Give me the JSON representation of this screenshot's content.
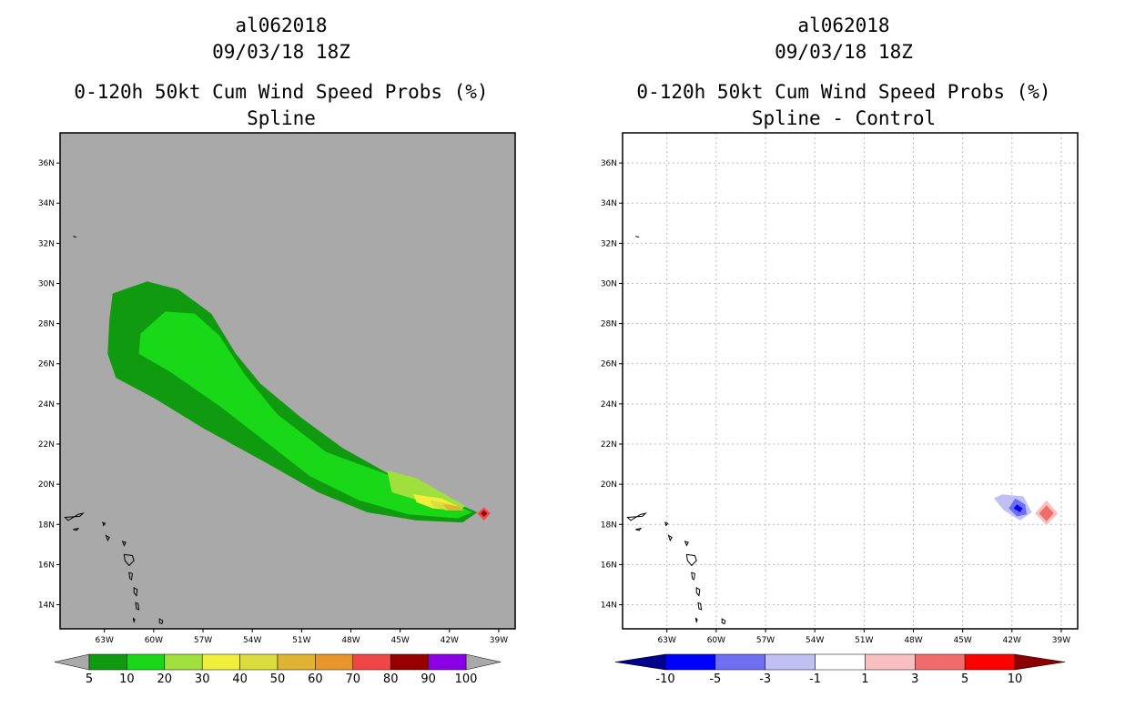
{
  "chart_data": [
    {
      "type": "heatmap",
      "storm_id": "al062018",
      "datetime": "09/03/18 18Z",
      "title": "0-120h 50kt Cum Wind Speed Probs (%)",
      "subtitle": "Spline",
      "x_ticks": [
        "63W",
        "60W",
        "57W",
        "54W",
        "51W",
        "48W",
        "45W",
        "42W",
        "39W"
      ],
      "y_ticks": [
        "14N",
        "16N",
        "18N",
        "20N",
        "22N",
        "24N",
        "26N",
        "28N",
        "30N",
        "32N",
        "34N",
        "36N"
      ],
      "xlim": [
        -65.7,
        -38.0
      ],
      "ylim": [
        12.8,
        37.5
      ],
      "grid": false,
      "background_color": "#a9a9a9",
      "colorbar": {
        "labels": [
          "5",
          "10",
          "20",
          "30",
          "40",
          "50",
          "60",
          "70",
          "80",
          "90",
          "100"
        ],
        "colors": [
          "#0f9a0f",
          "#18d818",
          "#a0e03c",
          "#f0f03c",
          "#dcdc3c",
          "#e0b432",
          "#e8962c",
          "#f04646",
          "#960000",
          "#8c00e6"
        ],
        "low_color": "#a9a9a9",
        "high_color": "#a9a9a9"
      },
      "contours": [
        {
          "level": "5-10",
          "color": "#0f9a0f",
          "lonlat": [
            [
              -62.5,
              29.5
            ],
            [
              -60.4,
              30.1
            ],
            [
              -58.5,
              29.7
            ],
            [
              -56.5,
              28.5
            ],
            [
              -55,
              26.5
            ],
            [
              -53.5,
              25
            ],
            [
              -51,
              23.3
            ],
            [
              -48.5,
              21.8
            ],
            [
              -45,
              20.2
            ],
            [
              -42,
              19.2
            ],
            [
              -40.3,
              18.6
            ],
            [
              -41.2,
              18.1
            ],
            [
              -44,
              18.2
            ],
            [
              -47,
              18.6
            ],
            [
              -50,
              19.6
            ],
            [
              -53,
              21
            ],
            [
              -57,
              22.8
            ],
            [
              -60,
              24.3
            ],
            [
              -62.3,
              25.3
            ],
            [
              -62.8,
              26.5
            ],
            [
              -62.7,
              28.2
            ]
          ]
        },
        {
          "level": "10-20",
          "color": "#18d818",
          "lonlat": [
            [
              -60.8,
              27.5
            ],
            [
              -59.3,
              28.6
            ],
            [
              -57.5,
              28.5
            ],
            [
              -56,
              27.4
            ],
            [
              -54.5,
              25.5
            ],
            [
              -52.5,
              23.5
            ],
            [
              -49.5,
              21.6
            ],
            [
              -45.5,
              20.4
            ],
            [
              -42.5,
              19.3
            ],
            [
              -40.6,
              18.6
            ],
            [
              -41.5,
              18.3
            ],
            [
              -44.5,
              18.5
            ],
            [
              -47.5,
              19.2
            ],
            [
              -50.5,
              20.4
            ],
            [
              -53,
              22
            ],
            [
              -56,
              23.9
            ],
            [
              -59,
              25.6
            ],
            [
              -60.9,
              26.5
            ]
          ]
        },
        {
          "level": "20-30",
          "color": "#a0e03c",
          "lonlat": [
            [
              -45.8,
              20.7
            ],
            [
              -44,
              20.3
            ],
            [
              -42.5,
              19.6
            ],
            [
              -41,
              18.9
            ],
            [
              -41.5,
              18.7
            ],
            [
              -43.5,
              19.1
            ],
            [
              -45.5,
              19.6
            ]
          ]
        },
        {
          "level": "30-40",
          "color": "#f0f03c",
          "lonlat": [
            [
              -44.2,
              19.5
            ],
            [
              -42.5,
              19.3
            ],
            [
              -41.2,
              18.8
            ],
            [
              -41.6,
              18.7
            ],
            [
              -43,
              18.8
            ],
            [
              -44,
              19.1
            ]
          ]
        },
        {
          "level": "40-50",
          "color": "#dcdc3c",
          "lonlat": [
            [
              -43.2,
              19.2
            ],
            [
              -41.8,
              19.0
            ],
            [
              -41.1,
              18.7
            ],
            [
              -42.2,
              18.7
            ],
            [
              -43,
              18.9
            ]
          ]
        },
        {
          "level": "50-60",
          "color": "#e0b432",
          "lonlat": [
            [
              -42.4,
              19.0
            ],
            [
              -41.4,
              18.9
            ],
            [
              -41.2,
              18.7
            ],
            [
              -42.1,
              18.7
            ]
          ]
        },
        {
          "level": "70-80",
          "color": "#f04646",
          "lonlat": [
            [
              -39.9,
              18.85
            ],
            [
              -39.5,
              18.55
            ],
            [
              -39.9,
              18.2
            ],
            [
              -40.3,
              18.55
            ]
          ]
        },
        {
          "level": "80-90",
          "color": "#960000",
          "lonlat": [
            [
              -39.9,
              18.7
            ],
            [
              -39.7,
              18.55
            ],
            [
              -39.9,
              18.38
            ],
            [
              -40.1,
              18.55
            ]
          ]
        }
      ]
    },
    {
      "type": "heatmap",
      "storm_id": "al062018",
      "datetime": "09/03/18 18Z",
      "title": "0-120h 50kt Cum Wind Speed Probs (%)",
      "subtitle": "Spline - Control",
      "x_ticks": [
        "63W",
        "60W",
        "57W",
        "54W",
        "51W",
        "48W",
        "45W",
        "42W",
        "39W"
      ],
      "y_ticks": [
        "14N",
        "16N",
        "18N",
        "20N",
        "22N",
        "24N",
        "26N",
        "28N",
        "30N",
        "32N",
        "34N",
        "36N"
      ],
      "xlim": [
        -65.7,
        -38.0
      ],
      "ylim": [
        12.8,
        37.5
      ],
      "grid": true,
      "background_color": "#ffffff",
      "colorbar": {
        "labels": [
          "-10",
          "-5",
          "-3",
          "-1",
          "1",
          "3",
          "5",
          "10"
        ],
        "colors": [
          "#0000ff",
          "#6e6ef0",
          "#c0c0f4",
          "#ffffff",
          "#f8c0c0",
          "#f06c6c",
          "#ff0000"
        ],
        "low_color": "#00008c",
        "high_color": "#8c0000"
      },
      "contours": [
        {
          "level": "-3 to -1",
          "color": "#c0c0f4",
          "lonlat": [
            [
              -42.6,
              19.5
            ],
            [
              -41.3,
              19.4
            ],
            [
              -40.8,
              18.6
            ],
            [
              -41.5,
              18.2
            ],
            [
              -42.5,
              18.7
            ],
            [
              -43.1,
              19.3
            ]
          ]
        },
        {
          "level": "-5 to -3",
          "color": "#6e6ef0",
          "lonlat": [
            [
              -41.8,
              19.3
            ],
            [
              -41.2,
              19.0
            ],
            [
              -41.1,
              18.5
            ],
            [
              -41.7,
              18.4
            ],
            [
              -42.2,
              18.8
            ]
          ]
        },
        {
          "level": "-10 to -5",
          "color": "#0000ff",
          "lonlat": [
            [
              -41.7,
              19.0
            ],
            [
              -41.35,
              18.8
            ],
            [
              -41.5,
              18.6
            ],
            [
              -41.9,
              18.8
            ]
          ]
        },
        {
          "level": "1 to 3",
          "color": "#f8c0c0",
          "lonlat": [
            [
              -39.9,
              19.2
            ],
            [
              -39.2,
              18.55
            ],
            [
              -39.9,
              17.95
            ],
            [
              -40.6,
              18.55
            ]
          ]
        },
        {
          "level": "3 to 5",
          "color": "#f06c6c",
          "lonlat": [
            [
              -39.9,
              18.95
            ],
            [
              -39.45,
              18.55
            ],
            [
              -39.9,
              18.15
            ],
            [
              -40.35,
              18.55
            ]
          ]
        }
      ]
    }
  ]
}
